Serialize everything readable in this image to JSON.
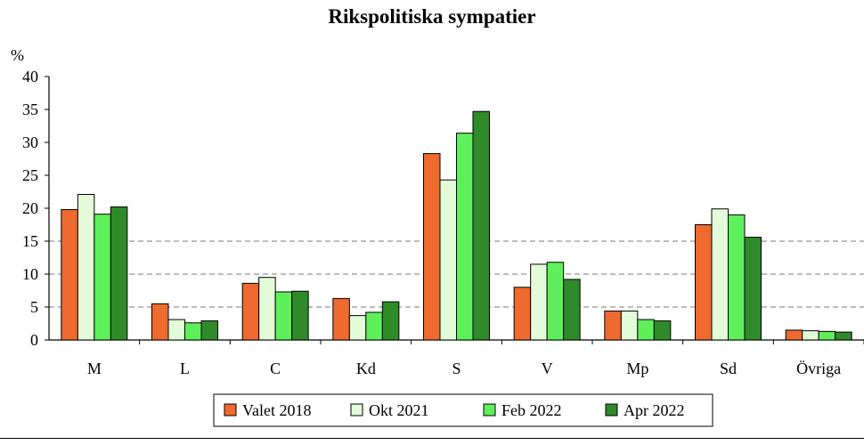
{
  "chart_data": {
    "type": "bar",
    "title": "Rikspolitiska sympatier",
    "ylabel": "%",
    "ylim": [
      0,
      40
    ],
    "yticks": [
      0,
      5,
      10,
      15,
      20,
      25,
      30,
      35,
      40
    ],
    "grid": "dashed horizontal lines at 5, 10, 15",
    "legend_position": "bottom-center",
    "categories": [
      "M",
      "L",
      "C",
      "Kd",
      "S",
      "V",
      "Mp",
      "Sd",
      "Övriga"
    ],
    "series": [
      {
        "name": "Valet 2018",
        "color": "#ee6a2e",
        "values": [
          19.8,
          5.5,
          8.6,
          6.3,
          28.3,
          8.0,
          4.4,
          17.5,
          1.5
        ]
      },
      {
        "name": "Okt 2021",
        "color": "#e3fbd8",
        "values": [
          22.1,
          3.1,
          9.5,
          3.7,
          24.3,
          11.5,
          4.4,
          19.9,
          1.4
        ]
      },
      {
        "name": "Feb 2022",
        "color": "#5ef05a",
        "values": [
          19.1,
          2.6,
          7.3,
          4.2,
          31.4,
          11.8,
          3.1,
          19.0,
          1.3
        ]
      },
      {
        "name": "Apr 2022",
        "color": "#2f8a2a",
        "values": [
          20.2,
          2.9,
          7.4,
          5.8,
          34.7,
          9.2,
          2.9,
          15.6,
          1.2
        ]
      }
    ]
  }
}
